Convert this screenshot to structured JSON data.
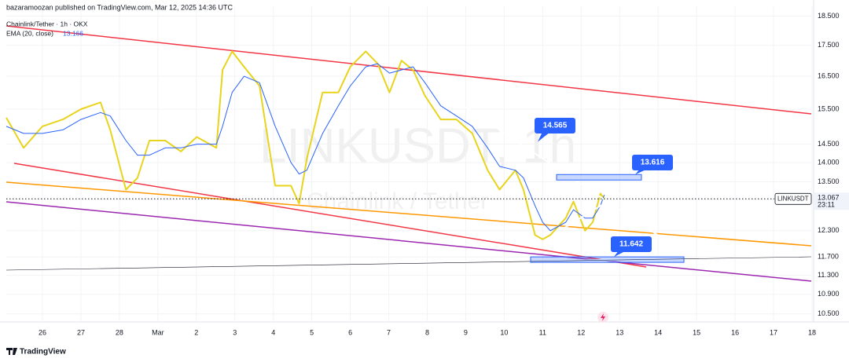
{
  "header": {
    "publisher": "bazaramoozan published on TradingView.com, Mar 12, 2025 14:36 UTC"
  },
  "footer": {
    "brand": "TradingView"
  },
  "chart_data": {
    "type": "line",
    "title": "Chainlink/Tether · 1h · OKX",
    "watermark": "LINKUSDT, 1h",
    "watermark_subtitle": "Chainlink / Tether",
    "log_scale": true,
    "x": [
      -0.94,
      -0.49,
      0,
      0.53,
      1.0,
      1.51,
      1.76,
      2.17,
      2.47,
      2.78,
      3.19,
      3.6,
      4.01,
      4.52,
      4.68,
      4.93,
      5.24,
      5.64,
      6.05,
      6.46,
      6.67,
      6.87,
      7.28,
      7.69,
      8.0,
      8.4,
      8.71,
      9.02,
      9.33,
      9.63,
      9.94,
      10.35,
      10.76,
      11.17,
      11.57,
      11.88,
      12.29,
      12.5,
      12.8,
      13.0,
      13.2,
      13.6,
      13.8,
      14.1,
      14.3,
      14.5,
      14.6
    ],
    "series": [
      {
        "color": "#e8d41c",
        "values": [
          15.25,
          14.4,
          15.0,
          15.2,
          15.5,
          15.7,
          14.9,
          13.3,
          13.6,
          14.6,
          14.6,
          14.3,
          14.7,
          14.4,
          16.7,
          17.3,
          16.8,
          16.2,
          13.4,
          13.4,
          12.95,
          14.1,
          16.0,
          16.0,
          16.8,
          17.3,
          16.9,
          16.0,
          17.0,
          16.7,
          15.9,
          15.2,
          15.2,
          14.8,
          13.8,
          13.3,
          13.8,
          13.3,
          12.2,
          12.1,
          12.2,
          12.6,
          13.0,
          12.3,
          12.5,
          13.2,
          13.067
        ]
      },
      {
        "name": "EMA (20, close)",
        "color": "#2962ff",
        "legend_value": {
          "value": 13.166,
          "label": "13.166"
        },
        "values": [
          15.0,
          14.8,
          14.8,
          14.9,
          15.2,
          15.4,
          15.3,
          14.6,
          14.2,
          14.2,
          14.4,
          14.4,
          14.5,
          14.5,
          15.0,
          16.0,
          16.5,
          16.3,
          15.0,
          14.0,
          13.7,
          13.8,
          14.8,
          15.6,
          16.2,
          16.8,
          16.9,
          16.6,
          16.7,
          16.8,
          16.3,
          15.6,
          15.3,
          15.0,
          14.4,
          13.9,
          13.8,
          13.6,
          12.9,
          12.5,
          12.3,
          12.5,
          12.8,
          12.6,
          12.6,
          12.9,
          13.166
        ]
      }
    ],
    "xlim": [
      -0.94,
      19.98
    ],
    "ylim": [
      10.34,
      18.85
    ],
    "xticks": [
      {
        "value": 0,
        "label": "26"
      },
      {
        "value": 1,
        "label": "27"
      },
      {
        "value": 2,
        "label": "28"
      },
      {
        "value": 3,
        "label": "Mar"
      },
      {
        "value": 4,
        "label": "2"
      },
      {
        "value": 5,
        "label": "3"
      },
      {
        "value": 6,
        "label": "4"
      },
      {
        "value": 7,
        "label": "5"
      },
      {
        "value": 8,
        "label": "6"
      },
      {
        "value": 9,
        "label": "7"
      },
      {
        "value": 10,
        "label": "8"
      },
      {
        "value": 11,
        "label": "9"
      },
      {
        "value": 12,
        "label": "10"
      },
      {
        "value": 13,
        "label": "11"
      },
      {
        "value": 14,
        "label": "12"
      },
      {
        "value": 15,
        "label": "13"
      },
      {
        "value": 16,
        "label": "14"
      },
      {
        "value": 17,
        "label": "15"
      },
      {
        "value": 18,
        "label": "16"
      },
      {
        "value": 19,
        "label": "17"
      },
      {
        "value": 20,
        "label": "18"
      }
    ],
    "yticks": [
      {
        "value": 18.5,
        "label": "18.500"
      },
      {
        "value": 17.5,
        "label": "17.500"
      },
      {
        "value": 16.5,
        "label": "16.500"
      },
      {
        "value": 15.5,
        "label": "15.500"
      },
      {
        "value": 14.5,
        "label": "14.500"
      },
      {
        "value": 14.0,
        "label": "14.000"
      },
      {
        "value": 13.5,
        "label": "13.500"
      },
      {
        "value": 12.3,
        "label": "12.300"
      },
      {
        "value": 11.7,
        "label": "11.700"
      },
      {
        "value": 11.3,
        "label": "11.300"
      },
      {
        "value": 10.9,
        "label": "10.900"
      },
      {
        "value": 10.5,
        "label": "10.500"
      }
    ],
    "annotations": [
      {
        "value": 14.565,
        "label": "14.565"
      },
      {
        "value": 13.616,
        "label": "13.616"
      },
      {
        "value": 11.642,
        "label": "11.642"
      }
    ],
    "last_price": {
      "symbol": "LINKUSDT",
      "value": 13.067,
      "label": "13.067",
      "countdown": "23:11"
    }
  }
}
